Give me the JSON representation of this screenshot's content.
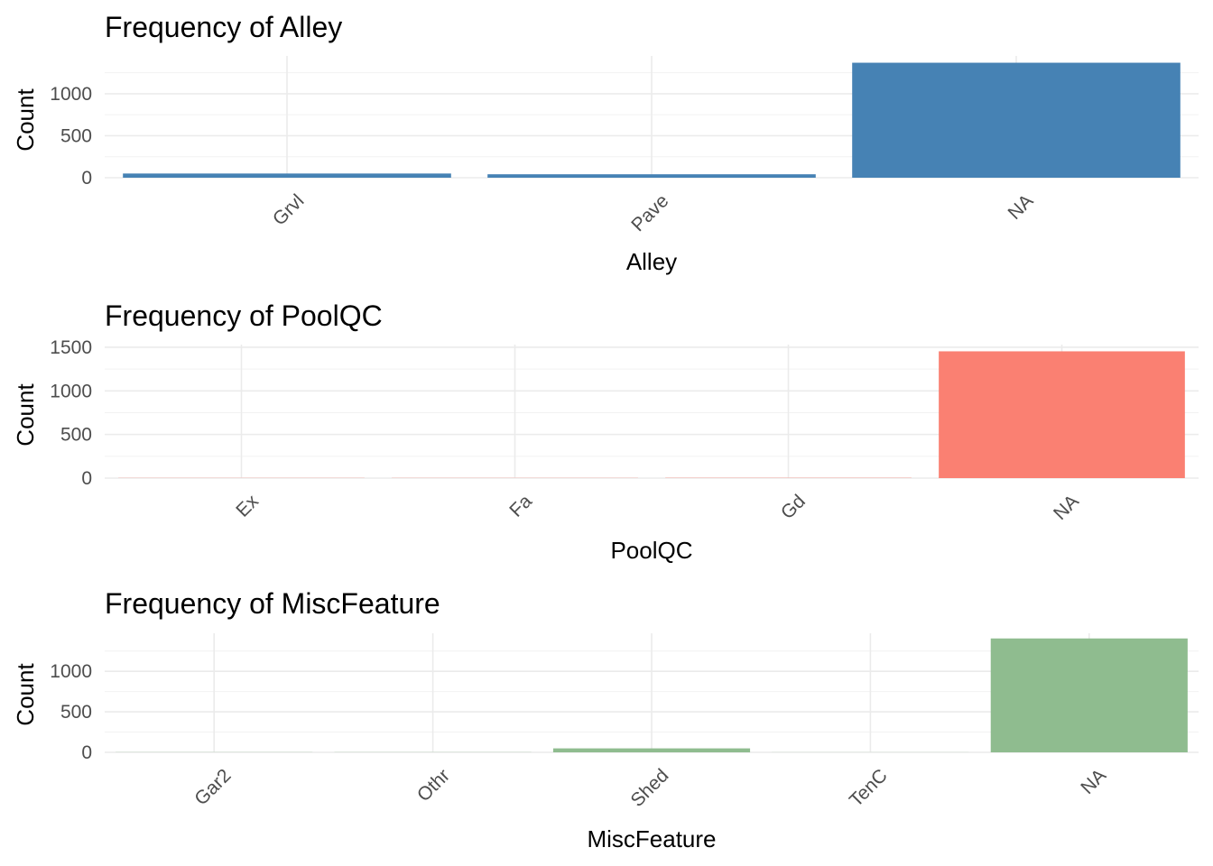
{
  "colors": {
    "background": "#ffffff",
    "grid": "#ebebeb",
    "tick_text": "#4d4d4d",
    "title_text": "#000000"
  },
  "chart_data": [
    {
      "type": "bar",
      "title": "Frequency of Alley",
      "xlabel": "Alley",
      "ylabel": "Count",
      "categories": [
        "Grvl",
        "Pave",
        "NA"
      ],
      "values": [
        50,
        41,
        1369
      ],
      "ylim": [
        0,
        1450
      ],
      "yticks": [
        0,
        500,
        1000
      ],
      "bar_color": "#4682b4",
      "grid": true,
      "x_tick_rotation": "-45deg"
    },
    {
      "type": "bar",
      "title": "Frequency of PoolQC",
      "xlabel": "PoolQC",
      "ylabel": "Count",
      "categories": [
        "Ex",
        "Fa",
        "Gd",
        "NA"
      ],
      "values": [
        2,
        2,
        3,
        1453
      ],
      "ylim": [
        0,
        1530
      ],
      "yticks": [
        0,
        500,
        1000,
        1500
      ],
      "bar_color": "#fa8072",
      "grid": true,
      "x_tick_rotation": "-45deg"
    },
    {
      "type": "bar",
      "title": "Frequency of MiscFeature",
      "xlabel": "MiscFeature",
      "ylabel": "Count",
      "categories": [
        "Gar2",
        "Othr",
        "Shed",
        "TenC",
        "NA"
      ],
      "values": [
        2,
        2,
        49,
        1,
        1406
      ],
      "ylim": [
        0,
        1470
      ],
      "yticks": [
        0,
        500,
        1000
      ],
      "bar_color": "#8fbc8f",
      "grid": true,
      "x_tick_rotation": "-45deg"
    }
  ]
}
